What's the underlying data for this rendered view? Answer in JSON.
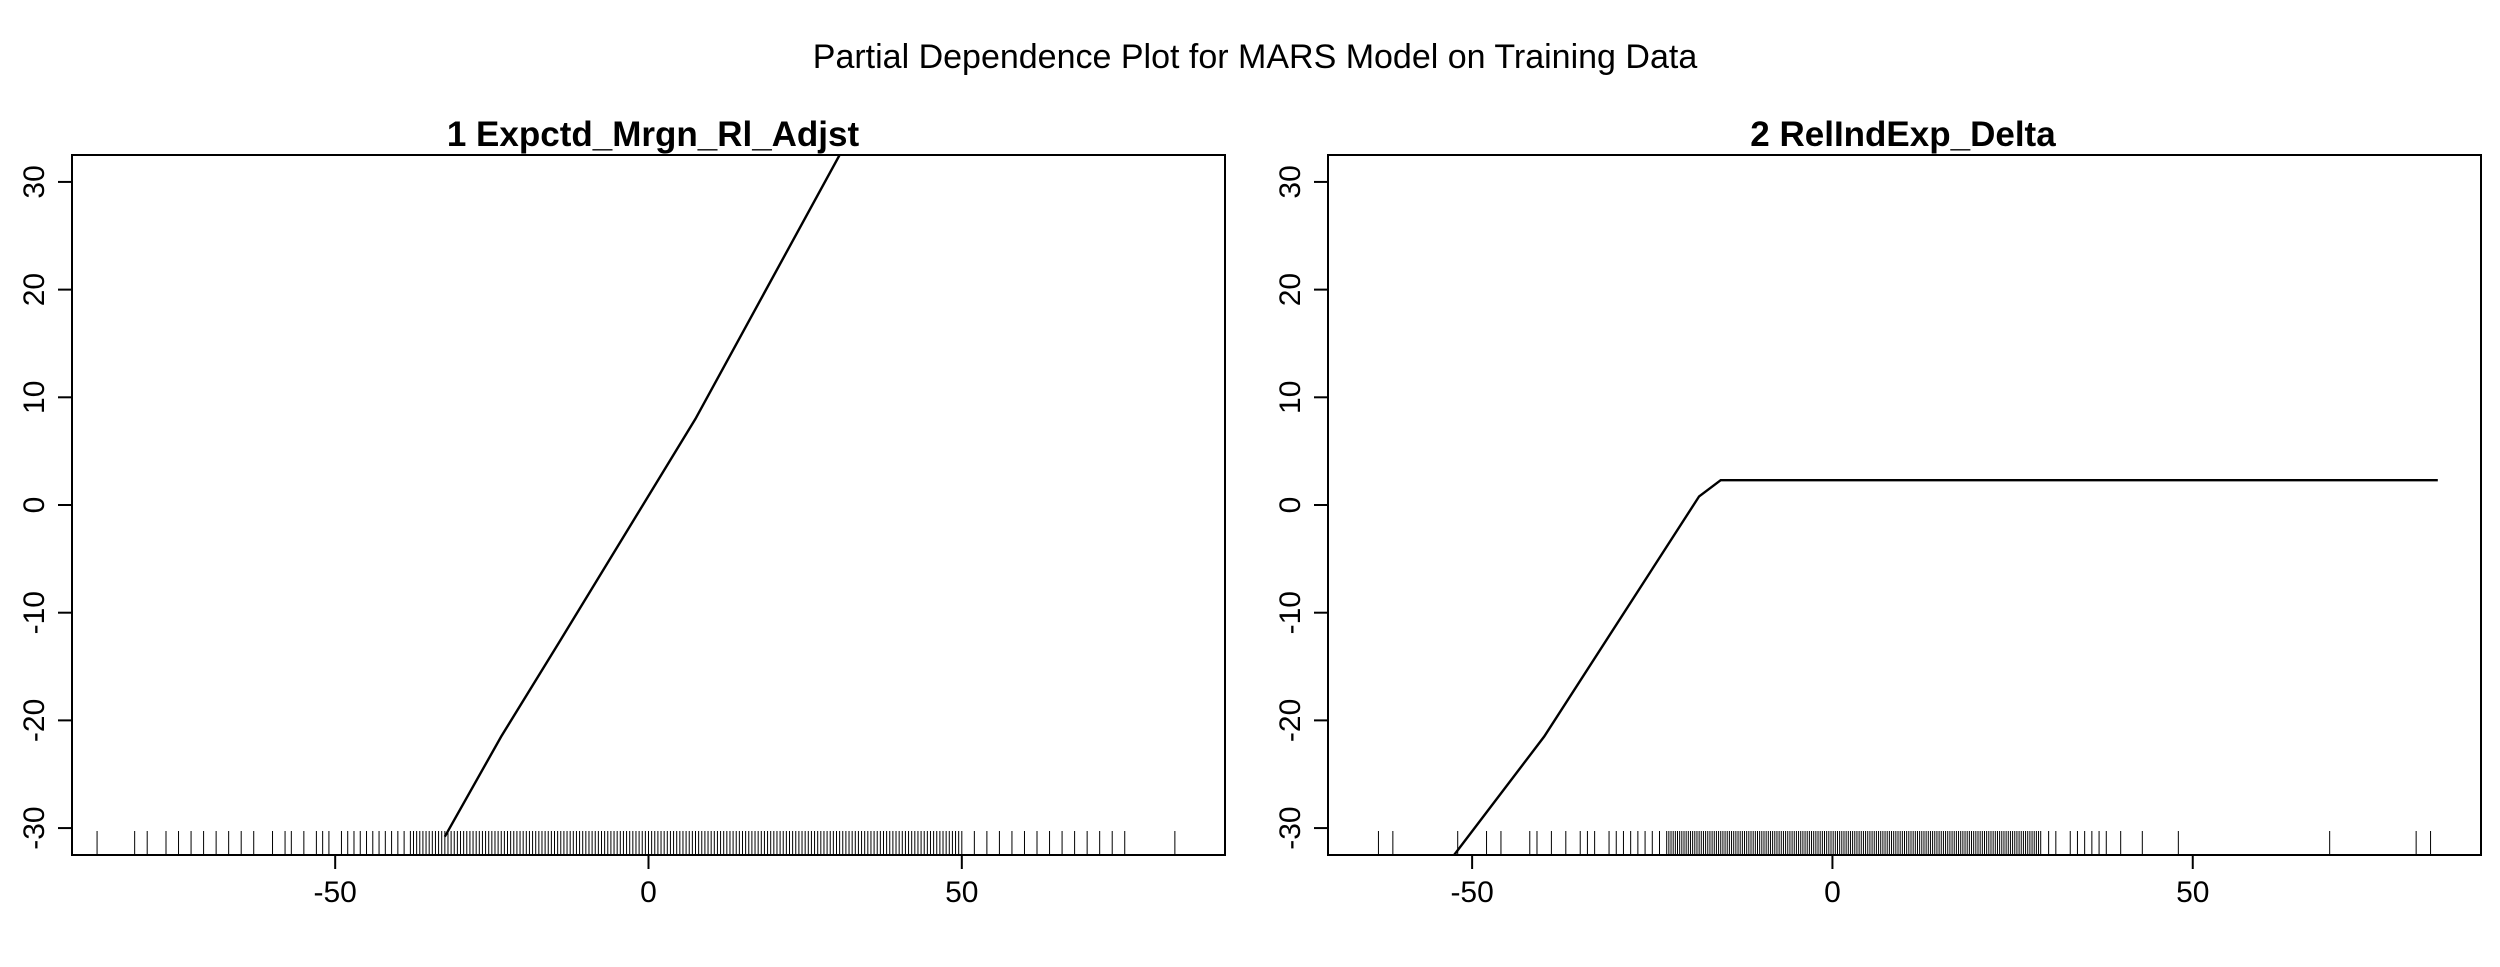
{
  "title": "Partial Dependence Plot for MARS Model on Training Data",
  "colors": {
    "line": "#000000",
    "axis": "#000000",
    "background": "#ffffff"
  },
  "chart_data": [
    {
      "type": "line",
      "title": "1  Expctd_Mrgn_Rl_Adjst",
      "xlabel": "",
      "ylabel": "",
      "xlim": [
        -92,
        92
      ],
      "ylim": [
        -32.5,
        32.5
      ],
      "x_ticks": [
        -50,
        0,
        50
      ],
      "x_tick_labels": [
        "-50",
        "0",
        "50"
      ],
      "y_ticks": [
        -30,
        -20,
        -10,
        0,
        10,
        20,
        30
      ],
      "y_tick_labels": [
        "-30",
        "-20",
        "-10",
        "0",
        "10",
        "20",
        "30"
      ],
      "grid": false,
      "x": [
        -32.5,
        -23.5,
        -14,
        7.5,
        30.5
      ],
      "y": [
        -30.8,
        -21.5,
        -12.5,
        8,
        32.5
      ],
      "rug": {
        "sparse": [
          -88,
          -82,
          -80,
          -77,
          -75,
          -73,
          -71,
          -69,
          -67,
          -65,
          -63,
          -60,
          -58,
          -57,
          -55,
          -53,
          -52,
          -51,
          -49,
          -48,
          -47,
          -46,
          -45,
          -44,
          -43,
          -42,
          -41,
          -40,
          -39,
          52,
          54,
          56,
          58,
          60,
          62,
          64,
          66,
          68,
          70,
          72,
          74,
          76,
          84
        ],
        "dense_range": [
          -38,
          50
        ],
        "dense_step": 0.5
      }
    },
    {
      "type": "line",
      "title": "2  RelIndExp_Delta",
      "xlabel": "",
      "ylabel": "",
      "xlim": [
        -70,
        90
      ],
      "ylim": [
        -32.5,
        32.5
      ],
      "x_ticks": [
        -50,
        0,
        50
      ],
      "x_tick_labels": [
        "-50",
        "0",
        "50"
      ],
      "y_ticks": [
        -30,
        -20,
        -10,
        0,
        10,
        20,
        30
      ],
      "y_tick_labels": [
        "-30",
        "-20",
        "-10",
        "0",
        "10",
        "20",
        "30"
      ],
      "grid": false,
      "x": [
        -52.5,
        -40,
        -18.5,
        -15.5,
        84
      ],
      "y": [
        -32.5,
        -21.5,
        0.8,
        2.3,
        2.3
      ],
      "rug": {
        "sparse": [
          -63,
          -61,
          -52,
          -48,
          -46,
          -42,
          -41,
          -39,
          -37,
          -35,
          -34,
          -33,
          -31,
          -30,
          -29,
          -28,
          -27,
          -26,
          -25,
          -24,
          30,
          31,
          33,
          34,
          35,
          36,
          37,
          38,
          40,
          43,
          48,
          69,
          81,
          83
        ],
        "dense_range": [
          -23,
          29
        ],
        "dense_step": 0.3
      }
    }
  ]
}
